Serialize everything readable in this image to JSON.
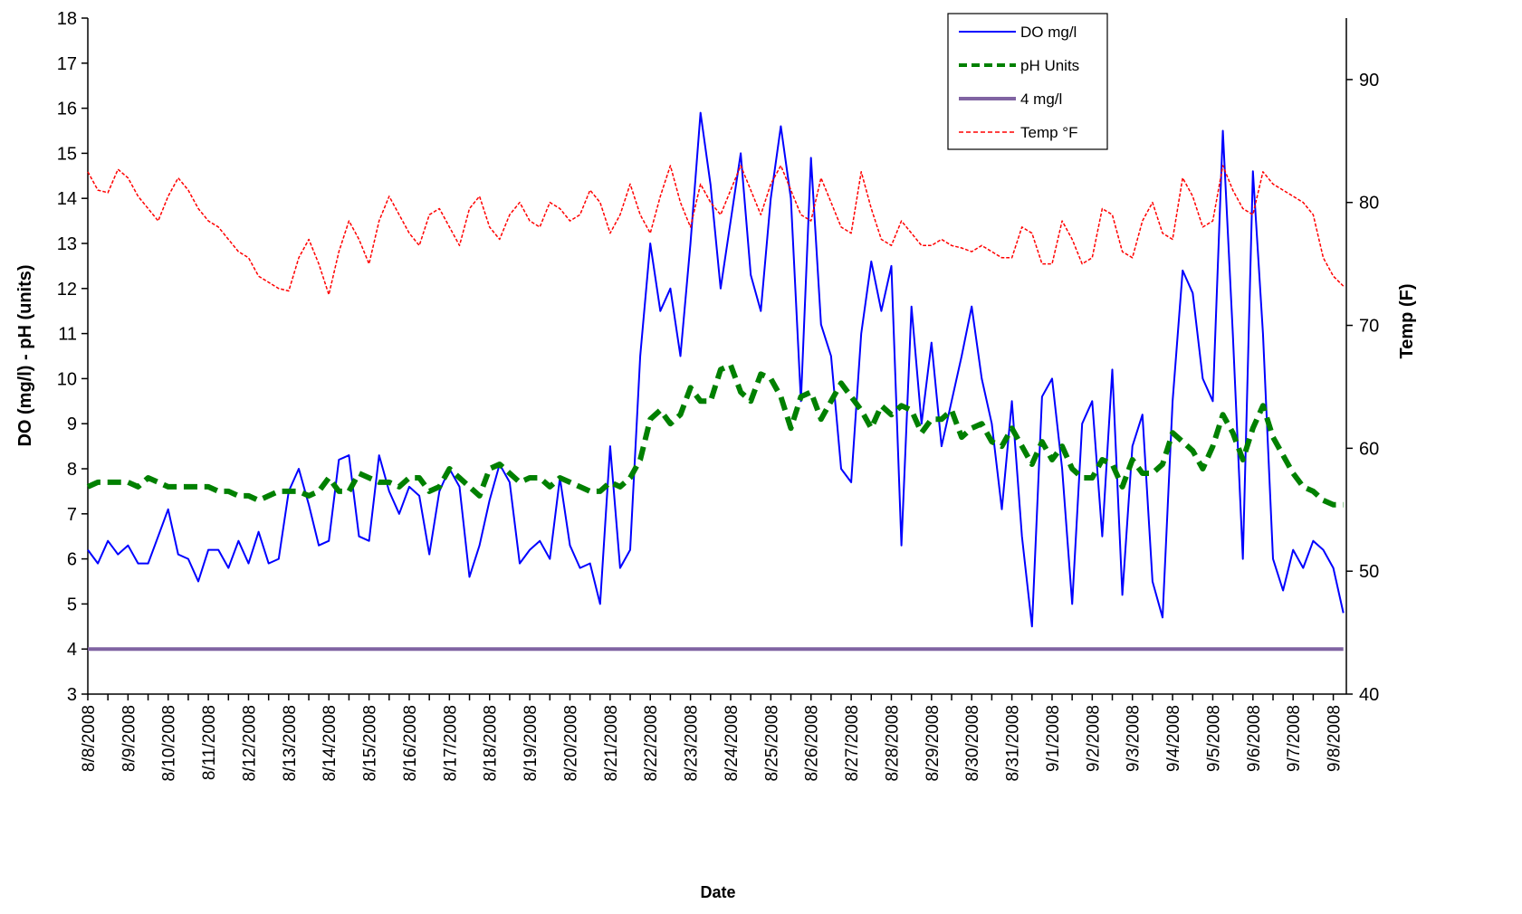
{
  "chart_data": {
    "type": "line",
    "xlabel": "Date",
    "ylabel": "DO (mg/l) - pH (units)",
    "y2label": "Temp (F)",
    "categories": [
      "8/8/2008",
      null,
      null,
      null,
      "8/9/2008",
      null,
      null,
      null,
      "8/10/2008",
      null,
      null,
      null,
      "8/11/2008",
      null,
      null,
      null,
      "8/12/2008",
      null,
      null,
      null,
      "8/13/2008",
      null,
      null,
      null,
      "8/14/2008",
      null,
      null,
      null,
      "8/15/2008",
      null,
      null,
      null,
      "8/16/2008",
      null,
      null,
      null,
      "8/17/2008",
      null,
      null,
      null,
      "8/18/2008",
      null,
      null,
      null,
      "8/19/2008",
      null,
      null,
      null,
      "8/20/2008",
      null,
      null,
      null,
      "8/21/2008",
      null,
      null,
      null,
      "8/22/2008",
      null,
      null,
      null,
      "8/23/2008",
      null,
      null,
      null,
      "8/24/2008",
      null,
      null,
      null,
      "8/25/2008",
      null,
      null,
      null,
      "8/26/2008",
      null,
      null,
      null,
      "8/27/2008",
      null,
      null,
      null,
      "8/28/2008",
      null,
      null,
      null,
      "8/29/2008",
      null,
      null,
      null,
      "8/30/2008",
      null,
      null,
      null,
      "8/31/2008",
      null,
      null,
      null,
      "9/1/2008",
      null,
      null,
      null,
      "9/2/2008",
      null,
      null,
      null,
      "9/3/2008",
      null,
      null,
      null,
      "9/4/2008",
      null,
      null,
      null,
      "9/5/2008",
      null,
      null,
      null,
      "9/6/2008",
      null,
      null,
      null,
      "9/7/2008",
      null,
      null,
      null,
      "9/8/2008",
      null
    ],
    "series": [
      {
        "name": "DO mg/l",
        "color": "#0000ff",
        "linewidth": 2,
        "dashed": false,
        "values": [
          6.2,
          5.9,
          6.4,
          6.1,
          6.3,
          5.9,
          5.9,
          6.5,
          7.1,
          6.1,
          6.0,
          5.5,
          6.2,
          6.2,
          5.8,
          6.4,
          5.9,
          6.6,
          5.9,
          6.0,
          7.5,
          8.0,
          7.2,
          6.3,
          6.4,
          8.2,
          8.3,
          6.5,
          6.4,
          8.3,
          7.5,
          7.0,
          7.6,
          7.4,
          6.1,
          7.5,
          8.0,
          7.6,
          5.6,
          6.3,
          7.3,
          8.1,
          7.7,
          5.9,
          6.2,
          6.4,
          6.0,
          7.8,
          6.3,
          5.8,
          5.9,
          5.0,
          8.5,
          5.8,
          6.2,
          10.5,
          13.0,
          11.5,
          12.0,
          10.5,
          13.0,
          15.9,
          14.3,
          12.0,
          13.5,
          15.0,
          12.3,
          11.5,
          14.0,
          15.6,
          14.0,
          9.5,
          14.9,
          11.2,
          10.5,
          8.0,
          7.7,
          11.0,
          12.6,
          11.5,
          12.5,
          6.3,
          11.6,
          9.0,
          10.8,
          8.5,
          9.5,
          10.5,
          11.6,
          10.0,
          9.0,
          7.1,
          9.5,
          6.5,
          4.5,
          9.6,
          10.0,
          8.0,
          5.0,
          9.0,
          9.5,
          6.5,
          10.2,
          5.2,
          8.5,
          9.2,
          5.5,
          4.7,
          9.5,
          12.4,
          11.9,
          10.0,
          9.5,
          15.5,
          11.0,
          6.0,
          14.6,
          11.0,
          6.0,
          5.3,
          6.2,
          5.8,
          6.4,
          6.2,
          5.8,
          4.8
        ]
      },
      {
        "name": "pH Units",
        "color": "#008000",
        "linewidth": 6,
        "dashed": true,
        "values": [
          7.6,
          7.7,
          7.7,
          7.7,
          7.7,
          7.6,
          7.8,
          7.7,
          7.6,
          7.6,
          7.6,
          7.6,
          7.6,
          7.5,
          7.5,
          7.4,
          7.4,
          7.3,
          7.4,
          7.5,
          7.5,
          7.5,
          7.4,
          7.5,
          7.8,
          7.5,
          7.5,
          7.9,
          7.8,
          7.7,
          7.7,
          7.6,
          7.8,
          7.8,
          7.5,
          7.6,
          8.0,
          7.8,
          7.6,
          7.4,
          8.0,
          8.1,
          7.9,
          7.7,
          7.8,
          7.8,
          7.6,
          7.8,
          7.7,
          7.6,
          7.5,
          7.5,
          7.7,
          7.6,
          7.8,
          8.2,
          9.1,
          9.3,
          9.0,
          9.2,
          9.8,
          9.5,
          9.5,
          10.2,
          10.3,
          9.7,
          9.5,
          10.1,
          10.0,
          9.6,
          8.9,
          9.6,
          9.7,
          9.1,
          9.5,
          9.9,
          9.6,
          9.3,
          8.9,
          9.4,
          9.2,
          9.4,
          9.3,
          8.8,
          9.1,
          9.1,
          9.3,
          8.7,
          8.9,
          9.0,
          8.6,
          8.5,
          8.9,
          8.5,
          8.1,
          8.6,
          8.2,
          8.5,
          8.0,
          7.8,
          7.8,
          8.2,
          8.1,
          7.6,
          8.2,
          7.9,
          7.9,
          8.1,
          8.8,
          8.6,
          8.4,
          8.0,
          8.5,
          9.2,
          8.8,
          8.2,
          8.9,
          9.4,
          8.7,
          8.3,
          7.9,
          7.6,
          7.5,
          7.3,
          7.2,
          7.2
        ]
      },
      {
        "name": "4 mg/l",
        "color": "#8064a2",
        "linewidth": 4,
        "dashed": false,
        "values": [
          4,
          4,
          4,
          4,
          4,
          4,
          4,
          4,
          4,
          4,
          4,
          4,
          4,
          4,
          4,
          4,
          4,
          4,
          4,
          4,
          4,
          4,
          4,
          4,
          4,
          4,
          4,
          4,
          4,
          4,
          4,
          4,
          4,
          4,
          4,
          4,
          4,
          4,
          4,
          4,
          4,
          4,
          4,
          4,
          4,
          4,
          4,
          4,
          4,
          4,
          4,
          4,
          4,
          4,
          4,
          4,
          4,
          4,
          4,
          4,
          4,
          4,
          4,
          4,
          4,
          4,
          4,
          4,
          4,
          4,
          4,
          4,
          4,
          4,
          4,
          4,
          4,
          4,
          4,
          4,
          4,
          4,
          4,
          4,
          4,
          4,
          4,
          4,
          4,
          4,
          4,
          4,
          4,
          4,
          4,
          4,
          4,
          4,
          4,
          4,
          4,
          4,
          4,
          4,
          4,
          4,
          4,
          4,
          4,
          4,
          4,
          4,
          4,
          4,
          4,
          4,
          4,
          4,
          4,
          4,
          4,
          4,
          4,
          4,
          4,
          4
        ]
      },
      {
        "name": "Temp °F",
        "color": "#ff0000",
        "linewidth": 1.5,
        "dashed": true,
        "axis": "y2",
        "values": [
          82.5,
          81,
          80.8,
          82.7,
          82,
          80.5,
          79.5,
          78.5,
          80.5,
          82,
          81,
          79.5,
          78.5,
          78,
          77,
          76,
          75.5,
          74,
          73.5,
          73,
          72.8,
          75.5,
          77,
          75,
          72.5,
          76,
          78.5,
          77,
          75,
          78.5,
          80.5,
          79,
          77.5,
          76.5,
          79,
          79.5,
          78,
          76.5,
          79.5,
          80.5,
          78,
          77,
          79,
          80,
          78.5,
          78,
          80,
          79.5,
          78.5,
          79,
          81,
          80,
          77.5,
          79,
          81.5,
          79,
          77.5,
          80.5,
          83,
          80,
          78,
          81.5,
          80,
          79,
          81,
          83,
          81,
          79,
          81.5,
          83,
          81,
          79,
          78.5,
          82,
          80,
          78,
          77.5,
          82.5,
          79.5,
          77,
          76.5,
          78.5,
          77.5,
          76.5,
          76.5,
          77,
          76.5,
          76.3,
          76,
          76.5,
          76,
          75.5,
          75.5,
          78,
          77.5,
          75,
          75,
          78.5,
          77,
          75,
          75.5,
          79.5,
          79,
          76,
          75.5,
          78.5,
          80,
          77.5,
          77,
          82,
          80.5,
          78,
          78.5,
          83,
          81,
          79.5,
          79,
          82.5,
          81.5,
          81,
          80.5,
          80,
          79,
          75.5,
          74,
          73.2
        ]
      }
    ],
    "ylim": [
      3,
      18
    ],
    "yticks": [
      3,
      4,
      5,
      6,
      7,
      8,
      9,
      10,
      11,
      12,
      13,
      14,
      15,
      16,
      17,
      18
    ],
    "y2lim": [
      40,
      95
    ],
    "y2ticks": [
      40,
      50,
      60,
      70,
      80,
      90
    ],
    "grid": false,
    "legend": "top-right"
  }
}
